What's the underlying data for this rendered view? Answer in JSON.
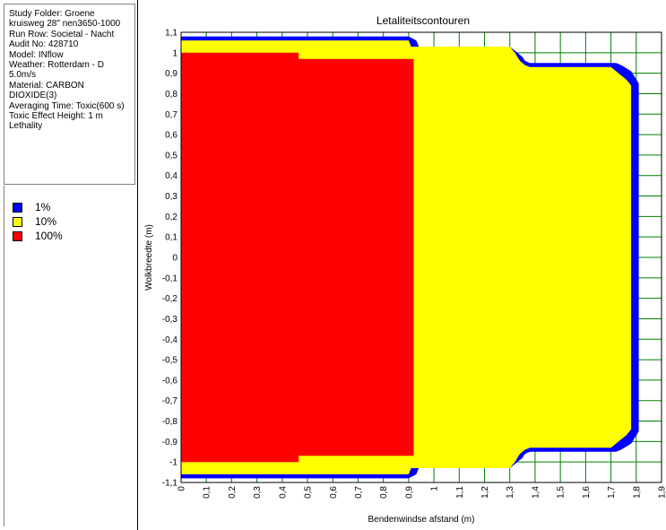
{
  "info": {
    "lines": [
      "Study Folder: Groene",
      "kruisweg 28\" nen3650-1000",
      "Run Row: Societal - Nacht",
      "Audit No: 428710",
      "Model: INflow",
      "Weather: Rotterdam - D",
      "5.0m/s",
      "Material: CARBON",
      "DIOXIDE(3)",
      "Averaging Time: Toxic(600 s)",
      "Toxic Effect Height: 1 m",
      "Lethality"
    ]
  },
  "legend": {
    "items": [
      {
        "label": "1%",
        "color": "#0000ff"
      },
      {
        "label": "10%",
        "color": "#ffff00"
      },
      {
        "label": "100%",
        "color": "#ff0000"
      }
    ]
  },
  "colors": {
    "background": "#ffffff",
    "grid": "#008000",
    "axis": "#000000"
  },
  "chart_data": {
    "type": "area",
    "title": "Letaliteitscontouren",
    "xlabel": "Bendenwindse afstand (m)",
    "ylabel": "Wolkbreedte (m)",
    "xlim": [
      0,
      1.9
    ],
    "ylim": [
      -1.1,
      1.1
    ],
    "grid": true,
    "x_ticks": [
      "0",
      "0,1",
      "0,2",
      "0,3",
      "0,4",
      "0,5",
      "0,6",
      "0,7",
      "0,8",
      "0,9",
      "1",
      "1,1",
      "1,2",
      "1,3",
      "1,4",
      "1,5",
      "1,6",
      "1,7",
      "1,8",
      "1,9"
    ],
    "y_ticks": [
      "1,1",
      "1",
      "0,9",
      "0,8",
      "0,7",
      "0,6",
      "0,5",
      "0,4",
      "0,3",
      "0,2",
      "0,1",
      "0",
      "-0,1",
      "-0,2",
      "-0,3",
      "-0,4",
      "-0,5",
      "-0,6",
      "-0,7",
      "-0,8",
      "-0,9",
      "-1",
      "-1,1"
    ],
    "series": [
      {
        "name": "1%",
        "color": "#0000ff",
        "x": [
          0,
          0.9,
          0.93,
          0.94,
          1.3,
          1.32,
          1.35,
          1.36,
          1.38,
          1.72,
          1.74,
          1.78,
          1.81,
          1.81,
          1.78,
          1.74,
          1.72,
          1.38,
          1.36,
          1.35,
          1.32,
          1.3,
          0.94,
          0.93,
          0.9,
          0
        ],
        "y": [
          1.08,
          1.08,
          1.06,
          1.03,
          1.03,
          1.01,
          0.98,
          0.96,
          0.95,
          0.95,
          0.94,
          0.91,
          0.85,
          -0.85,
          -0.91,
          -0.94,
          -0.95,
          -0.95,
          -0.96,
          -0.98,
          -1.01,
          -1.03,
          -1.03,
          -1.06,
          -1.08,
          -1.08
        ]
      },
      {
        "name": "10%",
        "color": "#ffff00",
        "x": [
          0,
          0.9,
          0.91,
          1.3,
          1.32,
          1.34,
          1.36,
          1.38,
          1.7,
          1.73,
          1.76,
          1.78,
          1.78,
          1.76,
          1.73,
          1.7,
          1.38,
          1.36,
          1.34,
          1.32,
          1.3,
          0.91,
          0.9,
          0
        ],
        "y": [
          1.06,
          1.06,
          1.03,
          1.03,
          1.0,
          0.96,
          0.94,
          0.93,
          0.93,
          0.9,
          0.87,
          0.84,
          -0.84,
          -0.87,
          -0.9,
          -0.93,
          -0.93,
          -0.94,
          -0.96,
          -1.0,
          -1.03,
          -1.03,
          -1.06,
          -1.06
        ]
      },
      {
        "name": "100%",
        "color": "#ff0000",
        "x": [
          0,
          0.465,
          0.465,
          0.92,
          0.92,
          0.465,
          0.465,
          0
        ],
        "y": [
          1.0,
          1.0,
          0.97,
          0.97,
          -0.97,
          -0.97,
          -1.0,
          -1.0
        ]
      }
    ]
  }
}
